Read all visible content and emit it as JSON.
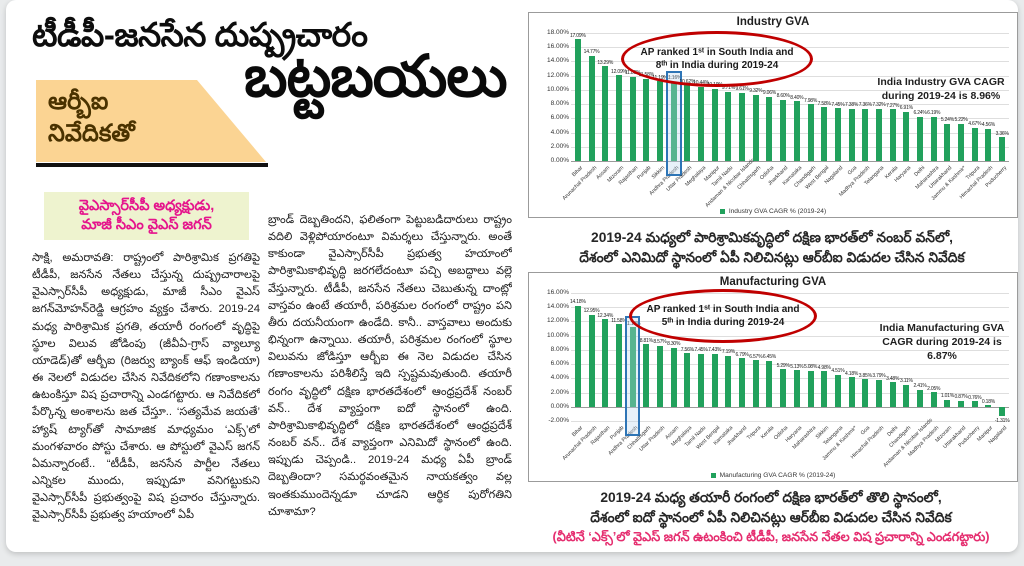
{
  "article": {
    "masthead": "టీడీపీ-జనసేన దుష్ప్రచారం",
    "kicker_line1": "ఆర్బీఐ",
    "kicker_line2": "నివేదికతో",
    "headline_big": "బట్టబయలు",
    "byline_line1": "వైఎస్సార్‌సీపీ అధ్యక్షుడు,",
    "byline_line2": "మాజీ సీఎం వైఎస్ జగన్",
    "body_col1": "సాక్షి, అమరావతి: రాష్ట్రంలో పారిశ్రామిక ప్రగతిపై టీడీపీ, జనసేన నేతలు చేస్తున్న దుష్ప్రచారాలపై వైఎస్సార్‌సీపీ అధ్యక్షుడు, మాజీ సీఎం వైఎస్ జగన్‌మోహన్‌రెడ్డి ఆగ్రహం వ్యక్తం చేశారు. 2019-24 మధ్య పారిశ్రామిక ప్రగతి, తయారీ రంగంలో వృద్ధిపై స్థూల విలువ జోడింపు (జీవీఏ-గ్రాస్ వ్యాల్యూ యాడెడ్)తో ఆర్బీఐ (రిజర్వు బ్యాంక్ ఆఫ్ ఇండియా) ఈ నెలలో విడుదల చేసిన నివేదికలోని గణాంకాలను ఉటంకిస్తూ విష ప్రచారాన్ని ఎండగట్టారు. ఆ నివేదికలో పేర్కొన్న అంశాలను జత చేస్తూ.. ‘సత్యమేవ జయతే’ హ్యాష్ ట్యాగ్‌తో సామాజిక మాధ్యమం ‘ఎక్స్’లో మంగళవారం పోస్టు చేశారు. ఆ పోస్టులో వైఎస్ జగన్ ఏమన్నారంటే.. “టీడీపీ, జనసేన పార్టీల నేతలు ఎన్నికల ముందు, ఇప్పుడూ వనిగట్టుకుని వైఎస్సార్‌సీపీ ప్రభుత్వంపై విష ప్రచారం చేస్తున్నారు. వైఎస్సార్‌సీపీ ప్రభుత్వ హయాంలో ఏపీ",
    "body_col2": "బ్రాండ్ దెబ్బతిందని, ఫలితంగా పెట్టుబడిదారులు రాష్ట్రం వదిలి వెళ్లిపోయారంటూ విమర్శలు చేస్తున్నారు. అంతే కాకుండా వైఎస్సార్‌సీపీ ప్రభుత్వ హయాంలో పారిశ్రామికాభివృద్ధి జరగలేదంటూ పచ్చి అబద్ధాలు వల్లె వేస్తున్నారు. టీడీపీ, జనసేన నేతలు చెబుతున్న దాంట్లో వాస్తవం ఉంటే తయారీ, పరిశ్రమల రంగంలో రాష్ట్రం పని తీరు దయనీయంగా ఉండేది. కానీ.. వాస్తవాలు అందుకు భిన్నంగా ఉన్నాయి. తయారీ, పరిశ్రమల రంగంలో స్థూల విలువను జోడిస్తూ ఆర్బీఐ ఈ నెల విడుదల చేసిన గణాంకాలను పరిశీలిస్తే ఇది స్పష్టమవుతుంది. తయారీ రంగం వృద్ధిలో దక్షిణ భారతదేశంలో ఆంధ్రప్రదేశ్ నంబర్ వన్.. దేశ వ్యాప్తంగా ఐదో స్థానంలో ఉంది. పారిశ్రామికాభివృద్ధిలో దక్షిణ భారతదేశంలో ఆంధ్రప్రదేశ్ నంబర్ వన్.. దేశ వ్యాప్తంగా ఎనిమిదో స్థానంలో ఉంది. ఇప్పుడు చెప్పండి.. 2019-24 మధ్య ఏపీ బ్రాండ్ దెబ్బతిందా? సమర్థవంతమైన నాయకత్వం వల్ల ఇంతకుముందెన్నడూ చూడని ఆర్థిక పురోగతిని చూశామా?"
  },
  "captions": {
    "caption1_line1": "2019-24 మధ్యలో పారిశ్రామికవృద్ధిలో దక్షిణ భారత్‌లో నంబర్ వన్‌లో,",
    "caption1_line2": "దేశంలో ఎనిమిదో స్థానంలో ఏపీ నిలిచినట్లు ఆర్‌బీఐ విడుదల చేసిన నివేదిక",
    "caption2_line1": "2019-24 మధ్య తయారీ రంగంలో దక్షిణ భారత్‌లో తొలి స్థానంలో,",
    "caption2_line2": "దేశంలో ఐదో స్థానంలో ఏపీ నిలిచినట్లు ఆర్‌బీఐ విడుదల చేసిన నివేదిక",
    "caption2_red": "(వీటినే ‘ఎక్స్‌’లో వైఎస్ జగన్ ఉటంకించి టీడీపీ, జనసేన నేతల విష ప్రచారాన్ని ఎండగట్టారు)"
  },
  "colors": {
    "bar_green": "#21a15c",
    "oval_red": "#c00000",
    "highlight_blue": "#2e75b6",
    "caption_red": "#e52d6f",
    "subhead_pink": "#e5148c",
    "kicker_bg": "#fbd493"
  },
  "chart_data": [
    {
      "type": "bar",
      "title": "Industry GVA",
      "legend": "Industry GVA CAGR % (2019-24)",
      "annotation_line1": "AP ranked 1ˢᵗ in South India and",
      "annotation_line2": "8ᵗʰ in India during 2019-24",
      "side_note": "India Industry GVA CAGR during 2019-24 is 8.96%",
      "bar_color": "#21a15c",
      "grid": true,
      "legend_position": "bottom-center",
      "ylim": [
        0,
        18
      ],
      "ytick_step": 2,
      "highlight_category": "Andhra Pradesh",
      "highlight_index": 7,
      "categories": [
        "Bihar",
        "Arunachal Pradesh",
        "Assam",
        "Mizoram",
        "Rajasthan",
        "Punjab",
        "Sikkim",
        "Andhra Pradesh",
        "Uttar Pradesh",
        "Meghalaya",
        "Manipur",
        "Tamil Nadu",
        "Andaman & Nicobar Islands",
        "Chhattisgarh",
        "Odisha",
        "Jharkhand",
        "Karnataka",
        "Chandigarh",
        "West Bengal",
        "Nagaland",
        "Goa",
        "Madhya Pradesh",
        "Telangana",
        "Kerala",
        "Haryana",
        "Delhi",
        "Maharashtra",
        "Uttarakhand",
        "Jammu & Kashmir*",
        "Tripura",
        "Himachal Pradesh",
        "Puducherry"
      ],
      "values": [
        17.09,
        14.77,
        13.29,
        12.09,
        11.86,
        11.58,
        11.19,
        11.16,
        10.62,
        10.44,
        10.19,
        9.71,
        9.61,
        9.32,
        9.06,
        8.6,
        8.4,
        7.98,
        7.58,
        7.45,
        7.38,
        7.36,
        7.32,
        7.27,
        6.91,
        6.24,
        6.19,
        5.24,
        5.22,
        4.67,
        4.56,
        3.36
      ]
    },
    {
      "type": "bar",
      "title": "Manufacturing GVA",
      "legend": "Manufacturing GVA CAGR % (2019-24)",
      "annotation_line1": "AP ranked 1ˢᵗ in South India and",
      "annotation_line2": "5ᵗʰ in India during 2019-24",
      "side_note": "India Manufacturing GVA CAGR during 2019-24 is 6.87%",
      "bar_color": "#21a15c",
      "grid": true,
      "legend_position": "bottom-center",
      "ylim": [
        -2,
        16
      ],
      "ytick_step": 2,
      "highlight_category": "Andhra Pradesh",
      "highlight_index": 4,
      "categories": [
        "Bihar",
        "Arunachal Pradesh",
        "Rajasthan",
        "Punjab",
        "Andhra Pradesh",
        "Chhattisgarh",
        "Uttar Pradesh",
        "Assam",
        "Meghalaya",
        "Tamil Nadu",
        "West Bengal",
        "Karnataka",
        "Jharkhand",
        "Tripura",
        "Kerala",
        "Odisha",
        "Haryana",
        "Maharashtra",
        "Sikkim",
        "Telangana",
        "Jammu & Kashmir*",
        "Goa",
        "Himachal Pradesh",
        "Delhi",
        "Chandigarh",
        "Andaman & Nicobar Islands",
        "Madhya Pradesh",
        "Mizoram",
        "Uttarakhand",
        "Puducherry",
        "Manipur",
        "Nagaland"
      ],
      "values": [
        14.18,
        12.95,
        12.34,
        11.58,
        11.19,
        8.81,
        8.57,
        8.3,
        7.56,
        7.45,
        7.43,
        7.19,
        6.79,
        6.57,
        6.45,
        5.29,
        5.13,
        5.08,
        4.98,
        4.51,
        4.18,
        3.85,
        3.79,
        3.48,
        3.11,
        2.41,
        2.05,
        1.01,
        0.87,
        0.76,
        0.18,
        -1.31
      ]
    }
  ]
}
